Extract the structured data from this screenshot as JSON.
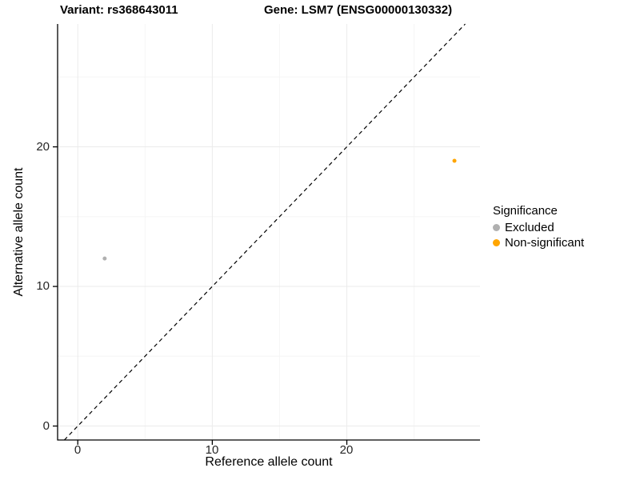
{
  "chart_data": {
    "type": "scatter",
    "title_left": "Variant: rs368643011",
    "title_right": "Gene: LSM7 (ENSG00000130332)",
    "xlabel": "Reference allele count",
    "ylabel": "Alternative allele count",
    "xlim": [
      -1.5,
      29.9
    ],
    "ylim": [
      -1.0,
      28.8
    ],
    "xticks": [
      0,
      10,
      20
    ],
    "yticks": [
      0,
      10,
      20
    ],
    "xtick_labels": [
      "0",
      "10",
      "20"
    ],
    "ytick_labels": [
      "0",
      "10",
      "20"
    ],
    "minor_xticks": [
      5,
      15,
      25
    ],
    "minor_yticks": [
      5,
      15,
      25
    ],
    "grid": true,
    "gridline_color": "#ebebeb",
    "minor_gridline_color": "#f5f5f5",
    "axis_color": "#000000",
    "identity_line": {
      "style": "dashed",
      "color": "#000000",
      "from": [
        -1.0,
        -1.0
      ],
      "to": [
        28.8,
        28.8
      ]
    },
    "series": [
      {
        "name": "Excluded",
        "color": "#b0b0b0",
        "point_radius": 2.5,
        "points": [
          [
            2,
            12
          ]
        ]
      },
      {
        "name": "Non-significant",
        "color": "#ffa500",
        "point_radius": 2.5,
        "points": [
          [
            28,
            19
          ]
        ]
      }
    ],
    "legend": {
      "title": "Significance",
      "position": "right"
    }
  }
}
